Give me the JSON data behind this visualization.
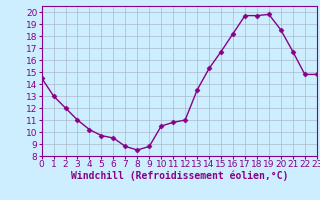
{
  "x": [
    0,
    1,
    2,
    3,
    4,
    5,
    6,
    7,
    8,
    9,
    10,
    11,
    12,
    13,
    14,
    15,
    16,
    17,
    18,
    19,
    20,
    21,
    22,
    23
  ],
  "y": [
    14.5,
    13.0,
    12.0,
    11.0,
    10.2,
    9.7,
    9.5,
    8.8,
    8.5,
    8.8,
    10.5,
    10.8,
    11.0,
    13.5,
    15.3,
    16.7,
    18.2,
    19.7,
    19.7,
    19.8,
    18.5,
    16.7,
    14.8,
    14.8
  ],
  "xlabel": "Windchill (Refroidissement éolien,°C)",
  "xlim": [
    0,
    23
  ],
  "ylim": [
    8,
    20.5
  ],
  "yticks": [
    8,
    9,
    10,
    11,
    12,
    13,
    14,
    15,
    16,
    17,
    18,
    19,
    20
  ],
  "xticks": [
    0,
    1,
    2,
    3,
    4,
    5,
    6,
    7,
    8,
    9,
    10,
    11,
    12,
    13,
    14,
    15,
    16,
    17,
    18,
    19,
    20,
    21,
    22,
    23
  ],
  "line_color": "#880088",
  "marker": "D",
  "marker_size": 2.5,
  "bg_color": "#cceeff",
  "grid_color": "#aabbcc",
  "xlabel_fontsize": 7,
  "tick_fontsize": 6.5,
  "linewidth": 1.0
}
